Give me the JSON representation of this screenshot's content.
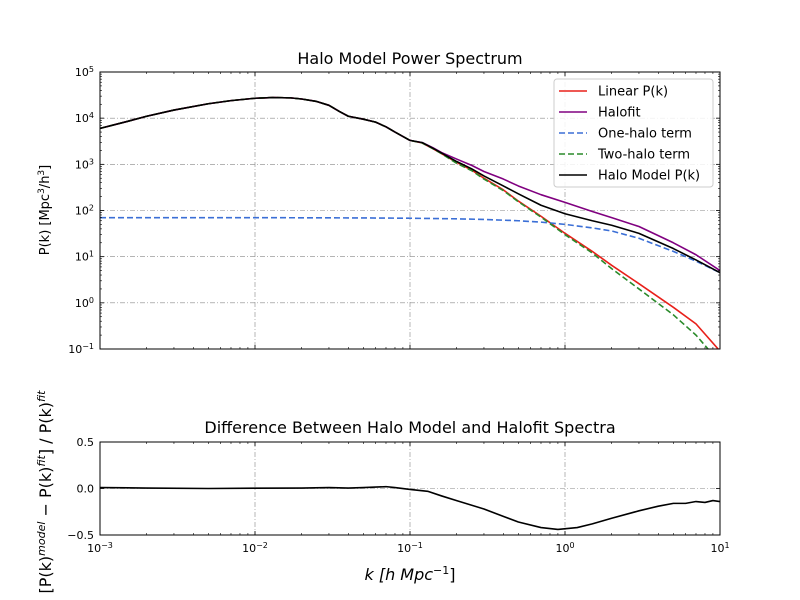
{
  "chart_data": [
    {
      "type": "line",
      "title": "Halo Model Power Spectrum",
      "xscale": "log",
      "yscale": "log",
      "xlim": [
        0.001,
        10
      ],
      "ylim": [
        0.1,
        100000
      ],
      "x_ticks": [
        {
          "value": 0.001,
          "base": "10",
          "exp": "−3"
        },
        {
          "value": 0.01,
          "base": "10",
          "exp": "−2"
        },
        {
          "value": 0.1,
          "base": "10",
          "exp": "−1"
        },
        {
          "value": 1,
          "base": "10",
          "exp": "0"
        },
        {
          "value": 10,
          "base": "10",
          "exp": "1"
        }
      ],
      "y_ticks": [
        {
          "value": 0.1,
          "base": "10",
          "exp": "−1"
        },
        {
          "value": 1,
          "base": "10",
          "exp": "0"
        },
        {
          "value": 10,
          "base": "10",
          "exp": "1"
        },
        {
          "value": 100,
          "base": "10",
          "exp": "2"
        },
        {
          "value": 1000,
          "base": "10",
          "exp": "3"
        },
        {
          "value": 10000,
          "base": "10",
          "exp": "4"
        },
        {
          "value": 100000,
          "base": "10",
          "exp": "5"
        }
      ],
      "ylabel": {
        "main": "P(k) [Mpc",
        "sup": "3",
        "mid": "/h",
        "sup2": "3",
        "end": "]"
      },
      "grid": true,
      "legend_position": "top-right",
      "series": [
        {
          "name": "Linear P(k)",
          "color": "#e8201a",
          "dash": "solid",
          "points": [
            [
              0.001,
              6000
            ],
            [
              0.0015,
              8500
            ],
            [
              0.002,
              11000
            ],
            [
              0.003,
              15000
            ],
            [
              0.005,
              20500
            ],
            [
              0.007,
              24000
            ],
            [
              0.01,
              27000
            ],
            [
              0.013,
              28000
            ],
            [
              0.017,
              27500
            ],
            [
              0.02,
              26000
            ],
            [
              0.025,
              23000
            ],
            [
              0.03,
              19000
            ],
            [
              0.035,
              14000
            ],
            [
              0.04,
              11000
            ],
            [
              0.05,
              9500
            ],
            [
              0.06,
              8200
            ],
            [
              0.07,
              6500
            ],
            [
              0.08,
              5000
            ],
            [
              0.1,
              3300
            ],
            [
              0.12,
              2900
            ],
            [
              0.14,
              2200
            ],
            [
              0.16,
              1700
            ],
            [
              0.2,
              1100
            ],
            [
              0.25,
              750
            ],
            [
              0.3,
              500
            ],
            [
              0.4,
              280
            ],
            [
              0.5,
              160
            ],
            [
              0.7,
              75
            ],
            [
              1,
              32
            ],
            [
              1.5,
              13
            ],
            [
              2,
              6.5
            ],
            [
              3,
              2.6
            ],
            [
              5,
              0.8
            ],
            [
              7,
              0.35
            ],
            [
              10,
              0.09
            ]
          ]
        },
        {
          "name": "Halofit",
          "color": "#800080",
          "dash": "solid",
          "points": [
            [
              0.001,
              6000
            ],
            [
              0.0015,
              8500
            ],
            [
              0.002,
              11000
            ],
            [
              0.003,
              15000
            ],
            [
              0.005,
              20500
            ],
            [
              0.007,
              24000
            ],
            [
              0.01,
              27000
            ],
            [
              0.013,
              28000
            ],
            [
              0.017,
              27500
            ],
            [
              0.02,
              26000
            ],
            [
              0.025,
              23000
            ],
            [
              0.03,
              19000
            ],
            [
              0.035,
              14000
            ],
            [
              0.04,
              11000
            ],
            [
              0.05,
              9500
            ],
            [
              0.06,
              8200
            ],
            [
              0.07,
              6500
            ],
            [
              0.08,
              5000
            ],
            [
              0.1,
              3300
            ],
            [
              0.12,
              2950
            ],
            [
              0.14,
              2300
            ],
            [
              0.16,
              1800
            ],
            [
              0.2,
              1300
            ],
            [
              0.25,
              950
            ],
            [
              0.3,
              700
            ],
            [
              0.4,
              480
            ],
            [
              0.5,
              340
            ],
            [
              0.7,
              220
            ],
            [
              1,
              150
            ],
            [
              1.5,
              95
            ],
            [
              2,
              70
            ],
            [
              3,
              45
            ],
            [
              5,
              20
            ],
            [
              7,
              11
            ],
            [
              10,
              5
            ]
          ]
        },
        {
          "name": "One-halo term",
          "color": "#3b6fd6",
          "dash": "dashed",
          "points": [
            [
              0.001,
              70
            ],
            [
              0.01,
              70
            ],
            [
              0.05,
              69
            ],
            [
              0.1,
              68
            ],
            [
              0.2,
              66
            ],
            [
              0.3,
              64
            ],
            [
              0.5,
              60
            ],
            [
              0.7,
              56
            ],
            [
              1,
              50
            ],
            [
              1.5,
              42
            ],
            [
              2,
              36
            ],
            [
              3,
              25
            ],
            [
              5,
              13
            ],
            [
              7,
              8
            ],
            [
              10,
              4.5
            ]
          ]
        },
        {
          "name": "Two-halo term",
          "color": "#2a8a2a",
          "dash": "dashed",
          "points": [
            [
              0.001,
              6000
            ],
            [
              0.0015,
              8500
            ],
            [
              0.002,
              11000
            ],
            [
              0.003,
              15000
            ],
            [
              0.005,
              20500
            ],
            [
              0.007,
              24000
            ],
            [
              0.01,
              27000
            ],
            [
              0.013,
              28000
            ],
            [
              0.017,
              27500
            ],
            [
              0.02,
              26000
            ],
            [
              0.025,
              23000
            ],
            [
              0.03,
              19000
            ],
            [
              0.035,
              14000
            ],
            [
              0.04,
              11000
            ],
            [
              0.05,
              9500
            ],
            [
              0.06,
              8200
            ],
            [
              0.07,
              6500
            ],
            [
              0.08,
              5000
            ],
            [
              0.1,
              3300
            ],
            [
              0.12,
              2900
            ],
            [
              0.14,
              2200
            ],
            [
              0.16,
              1700
            ],
            [
              0.2,
              1050
            ],
            [
              0.25,
              730
            ],
            [
              0.3,
              480
            ],
            [
              0.4,
              270
            ],
            [
              0.5,
              155
            ],
            [
              0.7,
              72
            ],
            [
              1,
              30
            ],
            [
              1.5,
              12
            ],
            [
              2,
              5.5
            ],
            [
              3,
              2.0
            ],
            [
              5,
              0.55
            ],
            [
              7,
              0.2
            ],
            [
              10,
              0.05
            ]
          ]
        },
        {
          "name": "Halo Model P(k)",
          "color": "#000000",
          "dash": "solid",
          "points": [
            [
              0.001,
              6000
            ],
            [
              0.0015,
              8500
            ],
            [
              0.002,
              11000
            ],
            [
              0.003,
              15000
            ],
            [
              0.005,
              20500
            ],
            [
              0.007,
              24000
            ],
            [
              0.01,
              27000
            ],
            [
              0.013,
              28000
            ],
            [
              0.017,
              27500
            ],
            [
              0.02,
              26000
            ],
            [
              0.025,
              23000
            ],
            [
              0.03,
              19000
            ],
            [
              0.035,
              14000
            ],
            [
              0.04,
              11000
            ],
            [
              0.05,
              9500
            ],
            [
              0.06,
              8200
            ],
            [
              0.07,
              6500
            ],
            [
              0.08,
              5000
            ],
            [
              0.1,
              3300
            ],
            [
              0.12,
              2950
            ],
            [
              0.14,
              2250
            ],
            [
              0.16,
              1750
            ],
            [
              0.2,
              1150
            ],
            [
              0.25,
              800
            ],
            [
              0.3,
              560
            ],
            [
              0.4,
              340
            ],
            [
              0.5,
              230
            ],
            [
              0.7,
              130
            ],
            [
              1,
              85
            ],
            [
              1.5,
              60
            ],
            [
              2,
              48
            ],
            [
              3,
              32
            ],
            [
              5,
              15
            ],
            [
              7,
              8.5
            ],
            [
              10,
              4.5
            ]
          ]
        }
      ]
    },
    {
      "type": "line",
      "title": "Difference Between Halo Model and Halofit Spectra",
      "xscale": "log",
      "yscale": "linear",
      "xlim": [
        0.001,
        10
      ],
      "ylim": [
        -0.5,
        0.5
      ],
      "x_ticks": [
        {
          "value": 0.001,
          "base": "10",
          "exp": "−3"
        },
        {
          "value": 0.01,
          "base": "10",
          "exp": "−2"
        },
        {
          "value": 0.1,
          "base": "10",
          "exp": "−1"
        },
        {
          "value": 1,
          "base": "10",
          "exp": "0"
        },
        {
          "value": 10,
          "base": "10",
          "exp": "1"
        }
      ],
      "y_ticks": [
        {
          "value": -0.5,
          "label": "−0.5"
        },
        {
          "value": 0.0,
          "label": "0.0"
        },
        {
          "value": 0.5,
          "label": "0.5"
        }
      ],
      "xlabel": {
        "main": "k [h Mpc",
        "sup": "−1",
        "end": "]"
      },
      "ylabel": {
        "p1": "[P(k)",
        "sup1": "model",
        "p2": " − P(k)",
        "sup2": "fit",
        "p3": "] / P(k)",
        "sup3": "fit"
      },
      "grid": true,
      "series": [
        {
          "name": "",
          "color": "#000000",
          "dash": "solid",
          "points": [
            [
              0.001,
              0.01
            ],
            [
              0.002,
              0.005
            ],
            [
              0.005,
              0.0
            ],
            [
              0.01,
              0.003
            ],
            [
              0.02,
              0.005
            ],
            [
              0.03,
              0.01
            ],
            [
              0.04,
              0.005
            ],
            [
              0.05,
              0.01
            ],
            [
              0.06,
              0.015
            ],
            [
              0.07,
              0.02
            ],
            [
              0.08,
              0.01
            ],
            [
              0.1,
              -0.01
            ],
            [
              0.13,
              -0.03
            ],
            [
              0.16,
              -0.08
            ],
            [
              0.2,
              -0.13
            ],
            [
              0.3,
              -0.22
            ],
            [
              0.4,
              -0.3
            ],
            [
              0.5,
              -0.36
            ],
            [
              0.7,
              -0.42
            ],
            [
              0.9,
              -0.44
            ],
            [
              1.2,
              -0.42
            ],
            [
              1.5,
              -0.38
            ],
            [
              2,
              -0.32
            ],
            [
              3,
              -0.24
            ],
            [
              4,
              -0.19
            ],
            [
              5,
              -0.16
            ],
            [
              6,
              -0.16
            ],
            [
              7,
              -0.14
            ],
            [
              8,
              -0.15
            ],
            [
              9,
              -0.13
            ],
            [
              10,
              -0.14
            ]
          ]
        }
      ]
    }
  ]
}
